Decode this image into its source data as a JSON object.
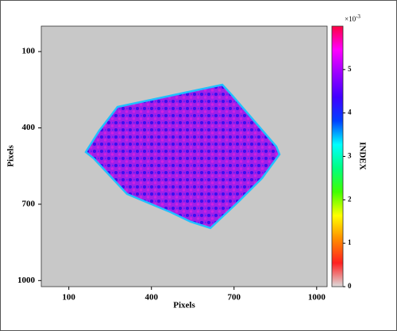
{
  "chart_data": {
    "type": "heatmap",
    "xlabel": "Pixels",
    "ylabel": "Pixels",
    "xlim": [
      0,
      1038
    ],
    "xticks": [
      100,
      400,
      700,
      1000
    ],
    "ylim": [
      0,
      1024
    ],
    "yticks": [
      100,
      400,
      700,
      1000
    ],
    "y_inverted": true,
    "background": "#c8c8c8",
    "colorbar": {
      "label": "INDEX",
      "multiplier_base": "×10",
      "multiplier_exponent": "-3",
      "lim": [
        0,
        6
      ],
      "ticks": [
        0,
        1,
        2,
        3,
        4,
        5
      ],
      "colormap": [
        "#dcdcdc",
        "#ff2020",
        "#ff8c00",
        "#ffff00",
        "#40ff00",
        "#00ff80",
        "#00ffff",
        "#0040ff",
        "#4000ff",
        "#9a00ff",
        "#ff00ff",
        "#ff0040"
      ]
    }
  }
}
